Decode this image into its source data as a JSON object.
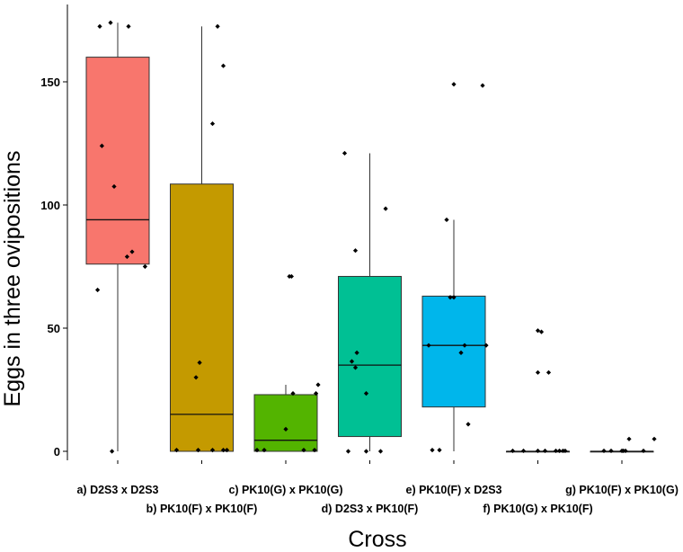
{
  "chart_data": {
    "type": "box",
    "title": "",
    "xlabel": "Cross",
    "ylabel": "Eggs in three ovipositions",
    "ylim": [
      -8,
      182
    ],
    "yticks": [
      0,
      50,
      100,
      150
    ],
    "grid": false,
    "legend": "none",
    "categories": [
      "a) D2S3 x D2S3",
      "b) PK10(F) x PK10(F)",
      "c) PK10(G) x PK10(G)",
      "d) D2S3 x PK10(F)",
      "e) PK10(F) x D2S3",
      "f) PK10(G) x PK10(F)",
      "g) PK10(F) x PK10(G)"
    ],
    "series": [
      {
        "category": "a) D2S3 x D2S3",
        "color": "#f8766d",
        "min": 0,
        "q1": 76,
        "median": 94,
        "q3": 160,
        "max": 174,
        "points": [
          [
            -0.25,
            172.5
          ],
          [
            -0.1,
            174
          ],
          [
            0.15,
            172.5
          ],
          [
            -0.22,
            124
          ],
          [
            -0.05,
            107.5
          ],
          [
            0.2,
            81
          ],
          [
            0.13,
            79
          ],
          [
            0.38,
            75
          ],
          [
            -0.28,
            65.5
          ],
          [
            -0.08,
            0
          ]
        ]
      },
      {
        "category": "b) PK10(F) x PK10(F)",
        "color": "#c49a00",
        "min": 0,
        "q1": 0,
        "median": 15,
        "q3": 108.5,
        "max": 172.5,
        "points": [
          [
            0.22,
            172.5
          ],
          [
            0.3,
            156.5
          ],
          [
            0.15,
            133
          ],
          [
            -0.03,
            36
          ],
          [
            -0.08,
            30
          ],
          [
            -0.35,
            0.5
          ],
          [
            -0.05,
            0.5
          ],
          [
            0.15,
            0.5
          ],
          [
            0.3,
            0.5
          ],
          [
            0.35,
            0.5
          ]
        ]
      },
      {
        "category": "c) PK10(G) x PK10(G)",
        "color": "#53b400",
        "min": 0,
        "q1": 0,
        "median": 4.5,
        "q3": 23,
        "max": 27,
        "points": [
          [
            0.05,
            71
          ],
          [
            0.08,
            71
          ],
          [
            0.45,
            27
          ],
          [
            0.1,
            23.5
          ],
          [
            0.42,
            23.5
          ],
          [
            0.0,
            9
          ],
          [
            -0.4,
            0.5
          ],
          [
            -0.3,
            0.5
          ],
          [
            0.25,
            0.5
          ],
          [
            0.4,
            0.5
          ]
        ]
      },
      {
        "category": "d) D2S3 x PK10(F)",
        "color": "#00c094",
        "min": 0,
        "q1": 6,
        "median": 35,
        "q3": 71,
        "max": 121,
        "points": [
          [
            -0.35,
            121
          ],
          [
            0.22,
            98.5
          ],
          [
            -0.2,
            81.5
          ],
          [
            -0.18,
            40
          ],
          [
            -0.25,
            36.5
          ],
          [
            -0.2,
            34
          ],
          [
            -0.05,
            23.5
          ],
          [
            -0.3,
            0
          ],
          [
            -0.05,
            0
          ],
          [
            0.15,
            0
          ]
        ]
      },
      {
        "category": "e) PK10(F) x D2S3",
        "color": "#00b6eb",
        "min": 0,
        "q1": 18,
        "median": 43,
        "q3": 63,
        "max": 94,
        "points": [
          [
            0.0,
            149
          ],
          [
            0.4,
            148.5
          ],
          [
            -0.1,
            94
          ],
          [
            -0.05,
            62.5
          ],
          [
            0.0,
            62.5
          ],
          [
            -0.35,
            43
          ],
          [
            0.15,
            43
          ],
          [
            0.45,
            43
          ],
          [
            0.1,
            40
          ],
          [
            0.2,
            11
          ],
          [
            -0.3,
            0.5
          ],
          [
            -0.2,
            0.5
          ]
        ]
      },
      {
        "category": "f) PK10(G) x PK10(F)",
        "color": "#a58aff",
        "min": 0,
        "q1": 0,
        "median": 0,
        "q3": 0,
        "max": 0,
        "points": [
          [
            0.0,
            49
          ],
          [
            0.05,
            48.5
          ],
          [
            0.0,
            32
          ],
          [
            0.15,
            32
          ],
          [
            -0.35,
            0.2
          ],
          [
            -0.2,
            0.2
          ],
          [
            0.0,
            0.2
          ],
          [
            0.1,
            0.2
          ],
          [
            0.25,
            0.2
          ],
          [
            0.3,
            0.2
          ],
          [
            0.35,
            0.2
          ],
          [
            0.38,
            0.2
          ]
        ]
      },
      {
        "category": "g) PK10(F) x PK10(G)",
        "color": "#fb61d7",
        "min": 0,
        "q1": 0,
        "median": 0,
        "q3": 0,
        "max": 0,
        "points": [
          [
            -0.25,
            0.2
          ],
          [
            -0.15,
            0.2
          ],
          [
            0.0,
            0.2
          ],
          [
            0.02,
            0.2
          ],
          [
            0.05,
            0.2
          ],
          [
            0.3,
            0.2
          ],
          [
            0.1,
            5
          ],
          [
            0.45,
            5
          ]
        ]
      }
    ]
  }
}
